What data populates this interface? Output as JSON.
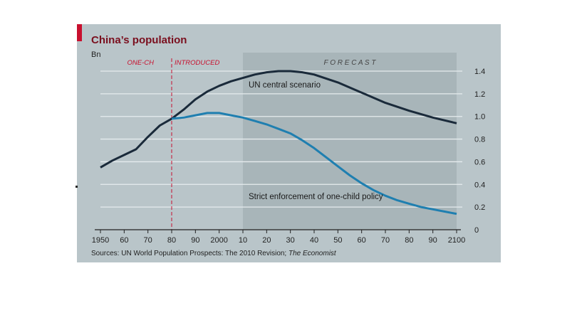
{
  "chart": {
    "title": "China’s population",
    "unit": "Bn",
    "forecast_label": "F O R E C A S T",
    "policy_label_left": "ONE-CH",
    "policy_label_right": "INTRODUCED",
    "source_prefix": "Sources: UN World Population Prospects: The 2010 Revision; ",
    "source_italic": "The Economist",
    "colors": {
      "background": "#b9c5c9",
      "forecast_shade": "#a8b5b9",
      "accent_red": "#c8102e",
      "un_series": "#1a2a3a",
      "strict_series": "#1f7fb0"
    }
  },
  "chart_data": {
    "type": "line",
    "title": "China’s population",
    "ylabel": "Bn",
    "xlim": [
      1950,
      2100
    ],
    "ylim": [
      0,
      1.4
    ],
    "x_tick_labels": [
      "1950",
      "60",
      "70",
      "80",
      "90",
      "2000",
      "10",
      "20",
      "30",
      "40",
      "50",
      "60",
      "70",
      "80",
      "90",
      "2100"
    ],
    "x_tick_values": [
      1950,
      1960,
      1970,
      1980,
      1990,
      2000,
      2010,
      2020,
      2030,
      2040,
      2050,
      2060,
      2070,
      2080,
      2090,
      2100
    ],
    "y_tick_labels": [
      "0",
      "0.2",
      "0.4",
      "0.6",
      "0.8",
      "1.0",
      "1.2",
      "1.4"
    ],
    "y_tick_values": [
      0,
      0.2,
      0.4,
      0.6,
      0.8,
      1.0,
      1.2,
      1.4
    ],
    "forecast_start": 2010,
    "forecast_end": 2100,
    "policy_year": 1980,
    "grid": true,
    "series": [
      {
        "name": "UN central scenario",
        "x": [
          1950,
          1955,
          1960,
          1965,
          1970,
          1975,
          1980,
          1985,
          1990,
          1995,
          2000,
          2005,
          2010,
          2015,
          2020,
          2025,
          2030,
          2035,
          2040,
          2050,
          2060,
          2070,
          2080,
          2090,
          2100
        ],
        "y": [
          0.55,
          0.61,
          0.66,
          0.71,
          0.82,
          0.92,
          0.98,
          1.06,
          1.15,
          1.22,
          1.27,
          1.31,
          1.34,
          1.37,
          1.39,
          1.4,
          1.4,
          1.39,
          1.37,
          1.3,
          1.21,
          1.12,
          1.05,
          0.99,
          0.94
        ]
      },
      {
        "name": "Strict enforcement of one-child policy",
        "x": [
          1980,
          1985,
          1990,
          1995,
          2000,
          2005,
          2010,
          2015,
          2020,
          2025,
          2030,
          2035,
          2040,
          2045,
          2050,
          2055,
          2060,
          2065,
          2070,
          2075,
          2080,
          2085,
          2090,
          2095,
          2100
        ],
        "y": [
          0.98,
          0.99,
          1.01,
          1.03,
          1.03,
          1.01,
          0.99,
          0.96,
          0.93,
          0.89,
          0.85,
          0.79,
          0.72,
          0.64,
          0.56,
          0.48,
          0.41,
          0.35,
          0.3,
          0.26,
          0.23,
          0.2,
          0.18,
          0.16,
          0.14
        ]
      }
    ]
  }
}
